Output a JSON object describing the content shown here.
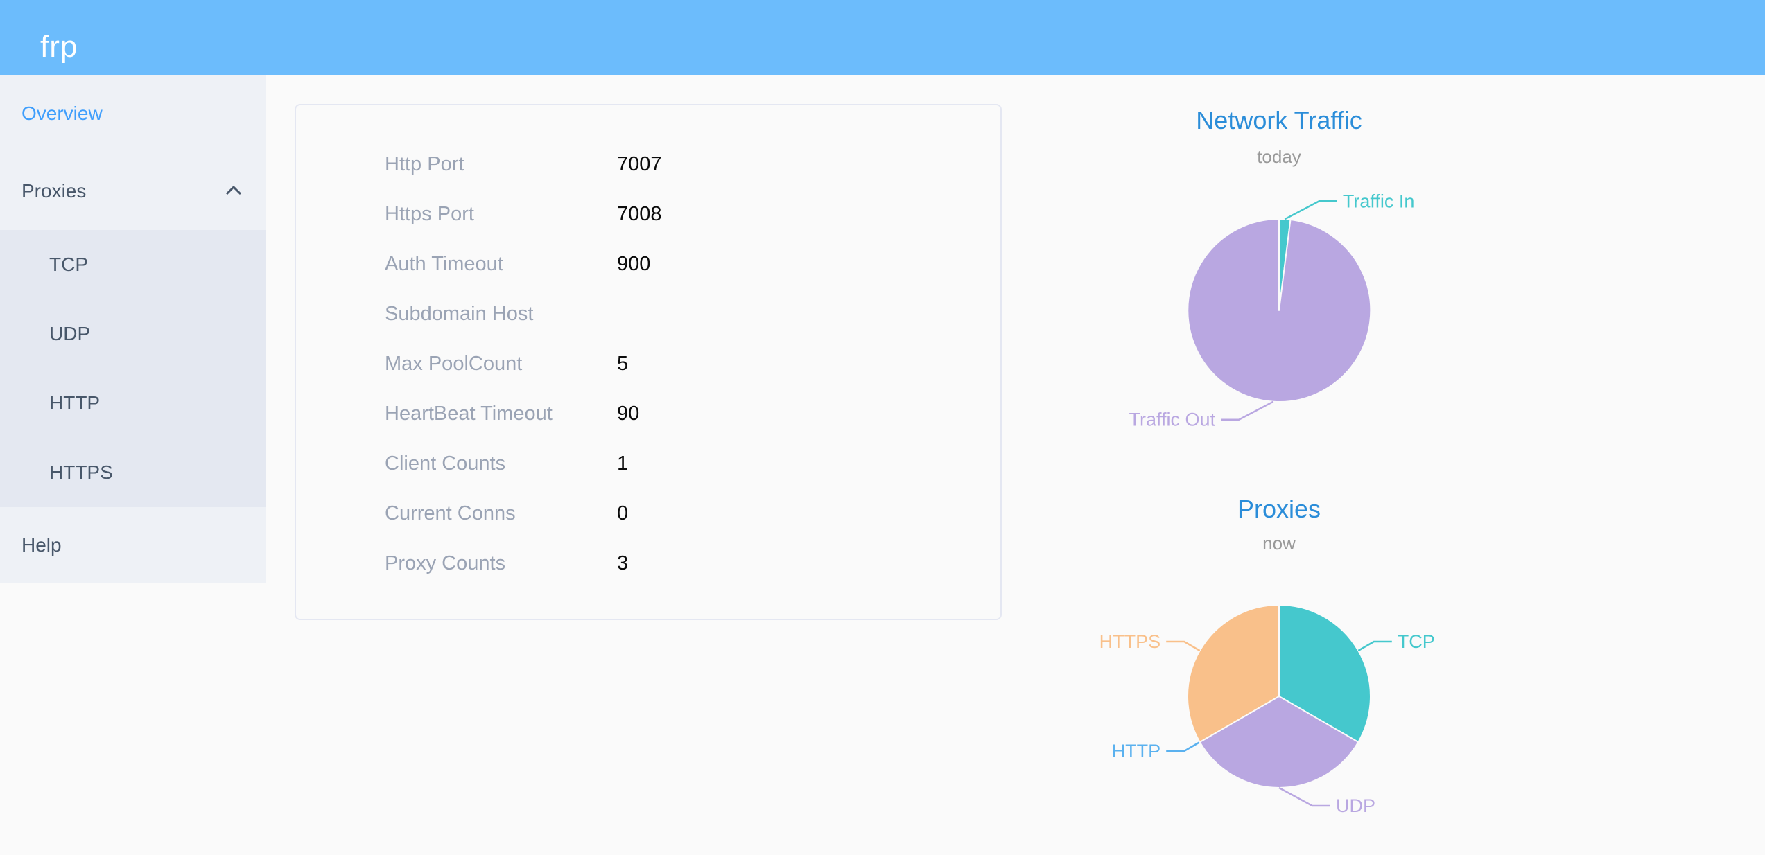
{
  "header": {
    "logo": "frp"
  },
  "sidebar": {
    "overview_label": "Overview",
    "proxies_label": "Proxies",
    "proxies_chevron_icon": "chevron-up",
    "proxy_types": [
      "TCP",
      "UDP",
      "HTTP",
      "HTTPS"
    ],
    "help_label": "Help"
  },
  "overview": {
    "rows": [
      {
        "label": "Http Port",
        "value": "7007"
      },
      {
        "label": "Https Port",
        "value": "7008"
      },
      {
        "label": "Auth Timeout",
        "value": "900"
      },
      {
        "label": "Subdomain Host",
        "value": ""
      },
      {
        "label": "Max PoolCount",
        "value": "5"
      },
      {
        "label": "HeartBeat Timeout",
        "value": "90"
      },
      {
        "label": "Client Counts",
        "value": "1"
      },
      {
        "label": "Current Conns",
        "value": "0"
      },
      {
        "label": "Proxy Counts",
        "value": "3"
      }
    ]
  },
  "chart_data": [
    {
      "type": "pie",
      "title": "Network Traffic",
      "subtitle": "today",
      "legend": "none",
      "labels": "outside-with-leader-lines",
      "values_are_visual_percent_estimates": true,
      "slices": [
        {
          "name": "Traffic In",
          "value": 2,
          "color": "#45c8cd"
        },
        {
          "name": "Traffic Out",
          "value": 98,
          "color": "#b9a7e1"
        }
      ]
    },
    {
      "type": "pie",
      "title": "Proxies",
      "subtitle": "now",
      "legend": "none",
      "labels": "outside-with-leader-lines",
      "slices": [
        {
          "name": "TCP",
          "value": 1,
          "color": "#45c8cd"
        },
        {
          "name": "UDP",
          "value": 1,
          "color": "#b9a7e1"
        },
        {
          "name": "HTTP",
          "value": 0,
          "color": "#5ab1ef"
        },
        {
          "name": "HTTPS",
          "value": 1,
          "color": "#f9c08a"
        }
      ]
    }
  ],
  "colors": {
    "header_bg": "#6cbcfc",
    "logo_text": "#ffffff",
    "sidebar_bg": "#eef1f6",
    "submenu_bg": "#e4e8f1",
    "sidebar_text": "#48576a",
    "active_text": "#3e9efc",
    "page_bg": "#fafafa",
    "card_border": "#e4e7f2",
    "label_text": "#9aa3b4",
    "value_text": "#0b0b0b",
    "title_text": "#2b8dd9",
    "subtitle_text": "#999999"
  }
}
